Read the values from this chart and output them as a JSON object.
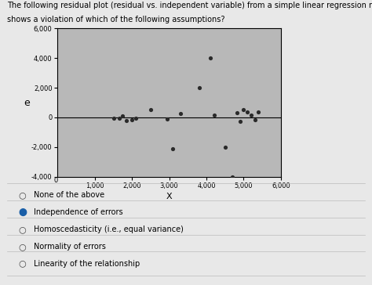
{
  "title_line1": "The following residual plot (residual vs. independent variable) from a simple linear regression model",
  "title_line2": "shows a violation of which of the following assumptions?",
  "xlabel": "X",
  "ylabel": "e",
  "xlim": [
    0,
    6000
  ],
  "ylim": [
    -4000,
    6000
  ],
  "xticks": [
    1000,
    2000,
    3000,
    4000,
    5000,
    6000
  ],
  "yticks": [
    -4000,
    -2000,
    0,
    2000,
    4000,
    6000
  ],
  "scatter_x": [
    1500,
    1650,
    1750,
    1850,
    2000,
    2100,
    2500,
    2950,
    3100,
    3300,
    3800,
    4100,
    4200,
    4500,
    4700,
    4820,
    4900,
    5000,
    5100,
    5200,
    5300,
    5400
  ],
  "scatter_y": [
    -50,
    -80,
    100,
    -200,
    -150,
    -80,
    550,
    -100,
    -2100,
    250,
    2000,
    4000,
    150,
    -2000,
    -4000,
    300,
    -250,
    550,
    350,
    150,
    -150,
    350
  ],
  "dot_color": "#2a2a2a",
  "plot_bg": "#b8b8b8",
  "options": [
    {
      "text": "None of the above",
      "selected": false
    },
    {
      "text": "Independence of errors",
      "selected": true
    },
    {
      "text": "Homoscedasticity (i.e., equal variance)",
      "selected": false
    },
    {
      "text": "Normality of errors",
      "selected": false
    },
    {
      "text": "Linearity of the relationship",
      "selected": false
    }
  ],
  "hline_y": 0,
  "page_bg": "#e8e8e8",
  "title_fontsize": 7.0,
  "tick_fontsize": 6.0,
  "option_fontsize": 7.0,
  "selected_color": "#1a5fa8"
}
